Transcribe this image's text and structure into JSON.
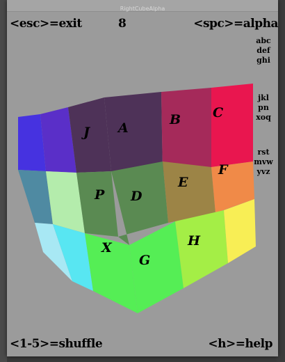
{
  "window": {
    "title": "RightCubeAlpha"
  },
  "hints": {
    "exit": "<esc>=exit",
    "counter": "8",
    "alpha": "<spc>=alpha",
    "shuffle": "<1-5>=shuffle",
    "help": "<h>=help"
  },
  "alphabet": {
    "group1": [
      "abc",
      "def",
      "ghi"
    ],
    "group2": [
      "jkl",
      "pn",
      "xoq"
    ],
    "group3": [
      "rst",
      "mvw",
      "yvz"
    ]
  },
  "cube": {
    "top_row": [
      {
        "letter": "J",
        "color": "#4e3258"
      },
      {
        "letter": "A",
        "color": "#4e3258"
      },
      {
        "letter": "B",
        "color": "#a52a5a"
      },
      {
        "letter": "C",
        "color": "#e9164f"
      }
    ],
    "middle_row": [
      {
        "letter": "P",
        "color": "#5a8a52"
      },
      {
        "letter": "D",
        "color": "#5a8a52"
      },
      {
        "letter": "E",
        "color": "#9c8446"
      },
      {
        "letter": "F",
        "color": "#f08a48"
      }
    ],
    "bottom_row": [
      {
        "letter": "X",
        "color": "#55ee55"
      },
      {
        "letter": "G",
        "color": "#55ee55"
      },
      {
        "letter": "H",
        "color": "#a4ee46"
      },
      {
        "letter": "",
        "color": "#f8ee55"
      }
    ],
    "left_top_colors": [
      "#4632e0",
      "#5a2fc8"
    ],
    "left_middle_colors": [
      "#4f8aa2",
      "#b4ecac"
    ],
    "left_bottom_colors": [
      "#a8e8f4",
      "#58e6f2"
    ]
  }
}
